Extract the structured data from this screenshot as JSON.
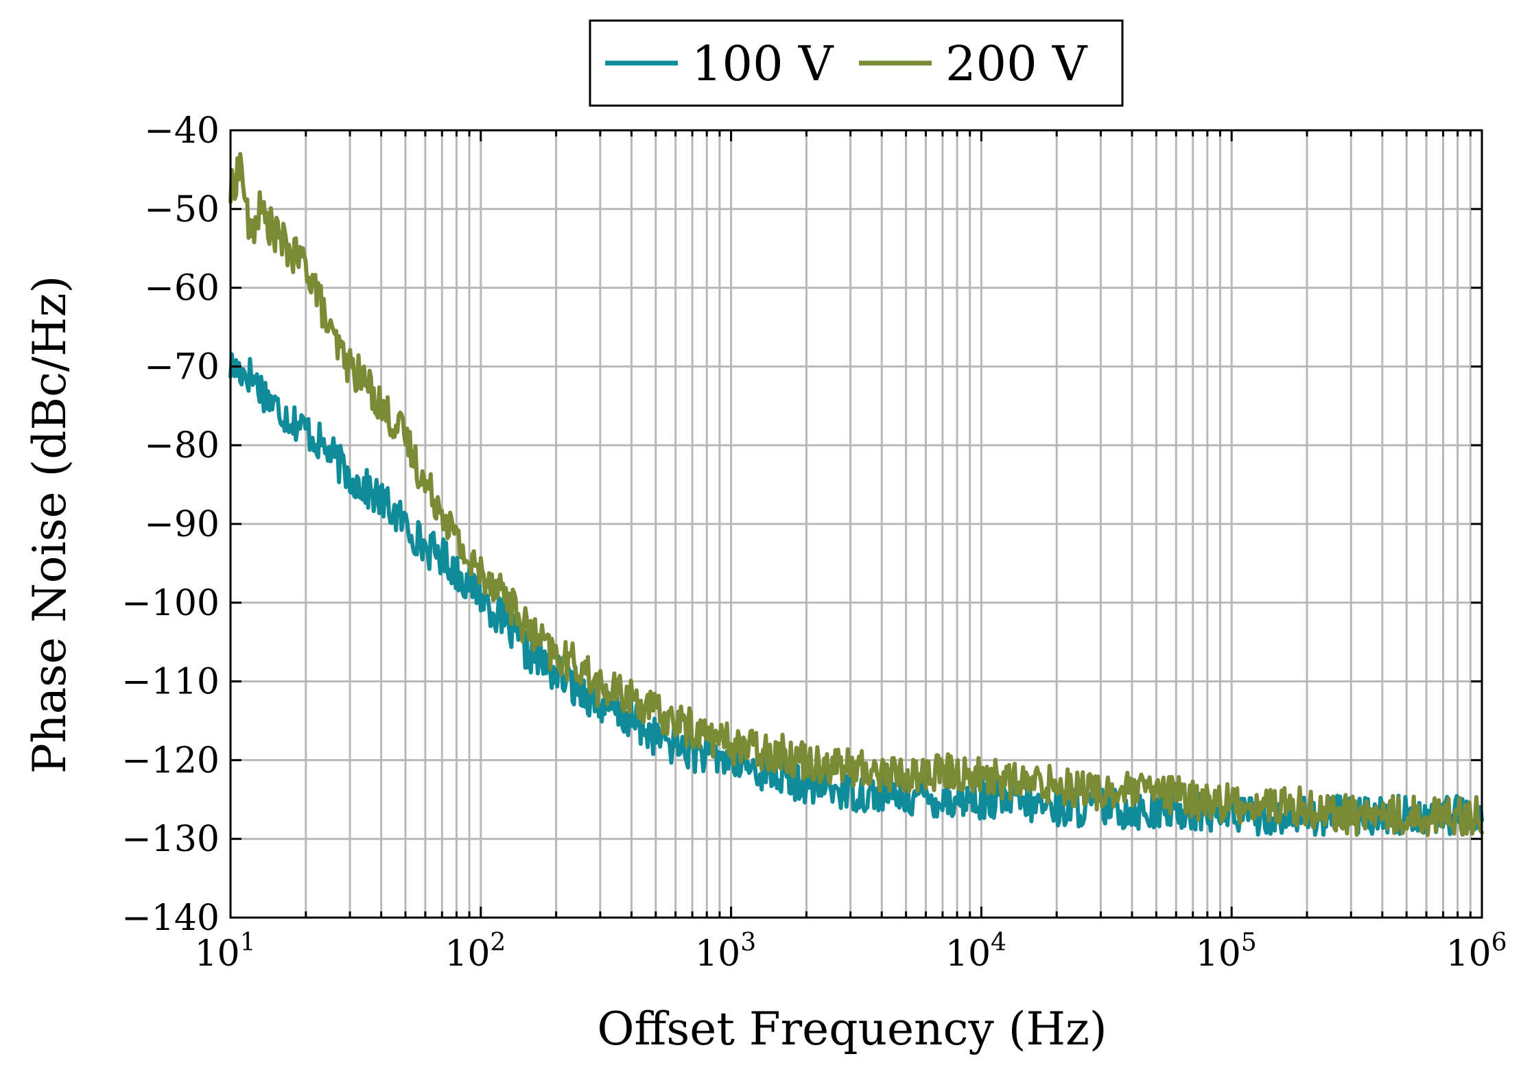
{
  "chart_data": {
    "type": "line",
    "title": "",
    "xlabel": "Offset Frequency (Hz)",
    "ylabel": "Phase Noise (dBc/Hz)",
    "x_scale": "log",
    "xlim": [
      10,
      1000000
    ],
    "ylim": [
      -140,
      -40
    ],
    "x_ticks": [
      {
        "base": "10",
        "exp": "1"
      },
      {
        "base": "10",
        "exp": "2"
      },
      {
        "base": "10",
        "exp": "3"
      },
      {
        "base": "10",
        "exp": "4"
      },
      {
        "base": "10",
        "exp": "5"
      },
      {
        "base": "10",
        "exp": "6"
      }
    ],
    "y_ticks": [
      "−40",
      "−50",
      "−60",
      "−70",
      "−80",
      "−90",
      "−100",
      "−110",
      "−120",
      "−130",
      "−140"
    ],
    "grid": true,
    "legend_position": "top-center",
    "series": [
      {
        "name": "100 V",
        "color": "#0f8b9a",
        "x": [
          10,
          12,
          15,
          20,
          25,
          30,
          40,
          50,
          60,
          70,
          80,
          100,
          120,
          150,
          200,
          250,
          300,
          400,
          500,
          700,
          1000,
          1500,
          2000,
          3000,
          5000,
          7000,
          10000,
          15000,
          20000,
          30000,
          50000,
          70000,
          100000,
          200000,
          300000,
          500000,
          700000,
          1000000
        ],
        "y": [
          -70,
          -71,
          -75,
          -78,
          -81,
          -84,
          -87,
          -90,
          -93,
          -94,
          -96,
          -99,
          -102,
          -106,
          -109,
          -111,
          -113,
          -115,
          -117,
          -119,
          -120,
          -122,
          -123,
          -124,
          -124.5,
          -125,
          -125,
          -125.5,
          -126,
          -126,
          -126.5,
          -126.5,
          -127,
          -127,
          -127,
          -127,
          -127,
          -127
        ]
      },
      {
        "name": "200 V",
        "color": "#7a8a35",
        "x": [
          10,
          11,
          12,
          13,
          15,
          18,
          20,
          22,
          25,
          30,
          35,
          40,
          50,
          60,
          70,
          80,
          90,
          100,
          120,
          150,
          200,
          250,
          300,
          400,
          500,
          700,
          1000,
          1500,
          2000,
          3000,
          5000,
          7000,
          10000,
          15000,
          20000,
          30000,
          50000,
          70000,
          100000,
          200000,
          300000,
          500000,
          700000,
          1000000
        ],
        "y": [
          -48,
          -44,
          -54,
          -50,
          -53,
          -56,
          -57,
          -60,
          -66,
          -70,
          -72,
          -75,
          -79,
          -85,
          -88,
          -92,
          -95,
          -96,
          -98,
          -103,
          -107,
          -108,
          -111,
          -112,
          -114,
          -116,
          -118,
          -119,
          -120,
          -121,
          -122,
          -121.5,
          -122,
          -123,
          -123,
          -124,
          -124,
          -125,
          -125.5,
          -126,
          -127,
          -127,
          -127,
          -127
        ]
      }
    ]
  }
}
